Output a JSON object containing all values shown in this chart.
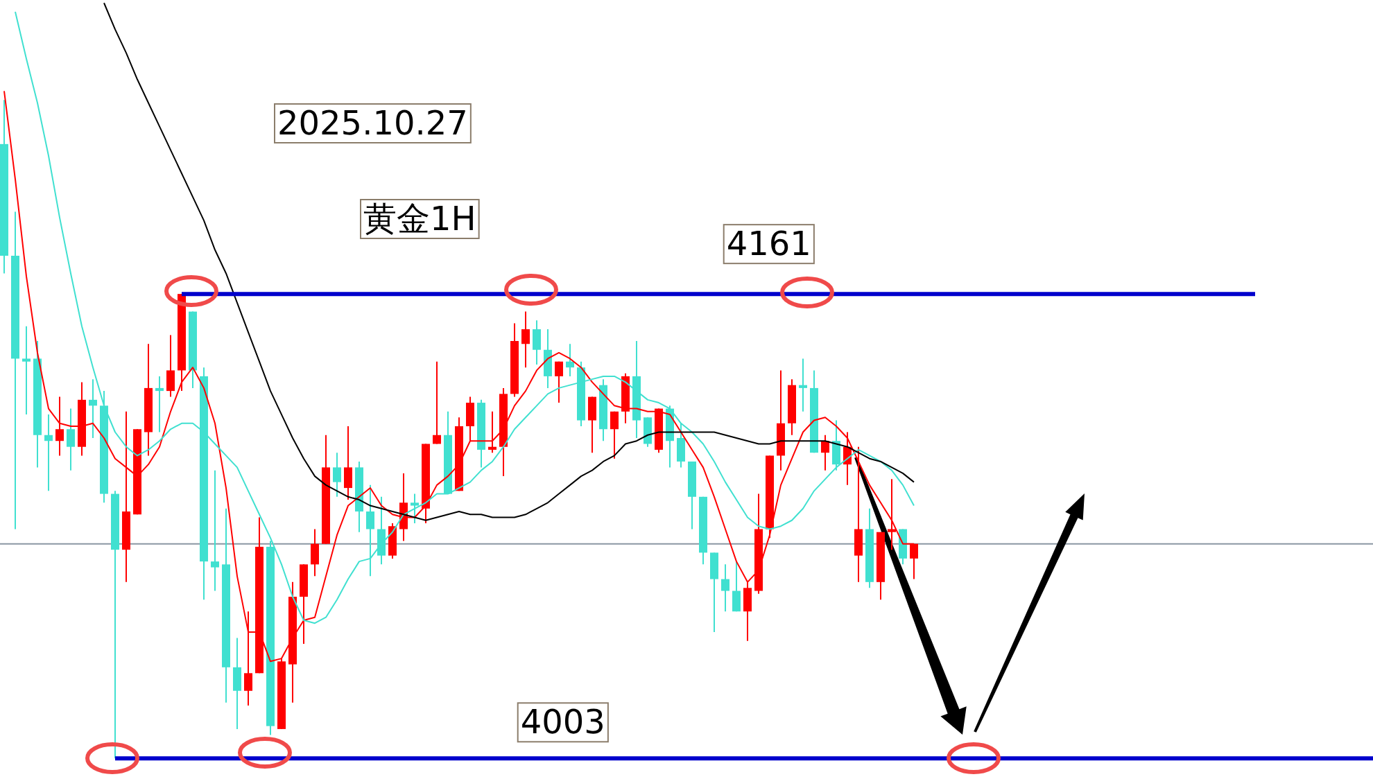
{
  "chart_data": {
    "type": "candlestick",
    "title": "2025.10.27",
    "subtitle": "黄金1H",
    "tick_labels": false,
    "ylim": [
      3996,
      4261
    ],
    "categories": [
      null,
      null,
      null,
      null,
      null,
      null,
      null,
      null,
      null,
      null,
      null,
      null,
      null,
      null,
      null,
      null,
      null,
      null,
      null,
      null,
      null,
      null,
      null,
      null,
      null,
      null,
      null,
      null,
      null,
      null,
      null,
      null,
      null,
      null,
      null,
      null,
      null,
      null,
      null,
      null,
      null,
      null,
      null,
      null,
      null,
      null,
      null,
      null,
      null,
      null,
      null,
      null,
      null,
      null,
      null,
      null,
      null,
      null,
      null,
      null,
      null,
      null,
      null,
      null,
      null,
      null,
      null,
      null,
      null,
      null,
      null,
      null,
      null,
      null,
      null,
      null,
      null,
      null,
      null,
      null,
      null,
      null,
      null
    ],
    "ohlc": [
      [
        4212,
        4227,
        4168,
        4174
      ],
      [
        4174,
        4189,
        4081,
        4139
      ],
      [
        4139,
        4150,
        4120,
        4138
      ],
      [
        4139,
        4145,
        4102,
        4113
      ],
      [
        4113,
        4120,
        4094,
        4111
      ],
      [
        4111,
        4126,
        4106,
        4115
      ],
      [
        4115,
        4122,
        4101,
        4109
      ],
      [
        4109,
        4131,
        4106,
        4125
      ],
      [
        4125,
        4132,
        4112,
        4123
      ],
      [
        4123,
        4128,
        4090,
        4093
      ],
      [
        4093,
        4094,
        4003,
        4074
      ],
      [
        4074,
        4121,
        4063,
        4087
      ],
      [
        4086,
        4115,
        4086,
        4115
      ],
      [
        4114,
        4144,
        4106,
        4129
      ],
      [
        4129,
        4133,
        4114,
        4128
      ],
      [
        4128,
        4147,
        4126,
        4135
      ],
      [
        4135,
        4161,
        4128,
        4161
      ],
      [
        4155,
        4155,
        4129,
        4135
      ],
      [
        4133,
        4136,
        4057,
        4070
      ],
      [
        4070,
        4101,
        4060,
        4068
      ],
      [
        4069,
        4088,
        4022,
        4034
      ],
      [
        4034,
        4044,
        4013,
        4026
      ],
      [
        4026,
        4053,
        4021,
        4032
      ],
      [
        4032,
        4085,
        4032,
        4075
      ],
      [
        4075,
        4077,
        4011,
        4014
      ],
      [
        4013,
        4037,
        4013,
        4036
      ],
      [
        4035,
        4063,
        4022,
        4058
      ],
      [
        4058,
        4069,
        4042,
        4069
      ],
      [
        4069,
        4081,
        4065,
        4076
      ],
      [
        4076,
        4113,
        4076,
        4102
      ],
      [
        4102,
        4107,
        4092,
        4097
      ],
      [
        4095,
        4116,
        4091,
        4102
      ],
      [
        4102,
        4104,
        4080,
        4087
      ],
      [
        4087,
        4096,
        4065,
        4081
      ],
      [
        4081,
        4092,
        4069,
        4072
      ],
      [
        4072,
        4083,
        4071,
        4082
      ],
      [
        4081,
        4100,
        4077,
        4090
      ],
      [
        4090,
        4093,
        4083,
        4089
      ],
      [
        4088,
        4110,
        4083,
        4110
      ],
      [
        4110,
        4138,
        4110,
        4113
      ],
      [
        4113,
        4121,
        4093,
        4093
      ],
      [
        4094,
        4119,
        4094,
        4116
      ],
      [
        4116,
        4126,
        4111,
        4124
      ],
      [
        4124,
        4125,
        4102,
        4108
      ],
      [
        4108,
        4121,
        4107,
        4109
      ],
      [
        4109,
        4129,
        4099,
        4127
      ],
      [
        4127,
        4151,
        4126,
        4145
      ],
      [
        4144,
        4155,
        4136,
        4149
      ],
      [
        4149,
        4152,
        4137,
        4142
      ],
      [
        4142,
        4149,
        4129,
        4133
      ],
      [
        4133,
        4138,
        4124,
        4138
      ],
      [
        4138,
        4144,
        4133,
        4136
      ],
      [
        4136,
        4138,
        4116,
        4118
      ],
      [
        4118,
        4126,
        4107,
        4126
      ],
      [
        4130,
        4132,
        4111,
        4115
      ],
      [
        4115,
        4121,
        4105,
        4121
      ],
      [
        4121,
        4134,
        4117,
        4133
      ],
      [
        4133,
        4145,
        4112,
        4118
      ],
      [
        4119,
        4119,
        4109,
        4110
      ],
      [
        4108,
        4122,
        4107,
        4122
      ],
      [
        4122,
        4123,
        4102,
        4111
      ],
      [
        4112,
        4117,
        4102,
        4104
      ],
      [
        4104,
        4104,
        4081,
        4092
      ],
      [
        4092,
        4092,
        4069,
        4073
      ],
      [
        4073,
        4073,
        4046,
        4064
      ],
      [
        4064,
        4069,
        4053,
        4060
      ],
      [
        4060,
        4070,
        4053,
        4053
      ],
      [
        4053,
        4063,
        4043,
        4061
      ],
      [
        4060,
        4093,
        4059,
        4081
      ],
      [
        4081,
        4106,
        4078,
        4106
      ],
      [
        4106,
        4135,
        4101,
        4117
      ],
      [
        4117,
        4132,
        4113,
        4130
      ],
      [
        4130,
        4139,
        4121,
        4129
      ],
      [
        4129,
        4135,
        4107,
        4107
      ],
      [
        4107,
        4113,
        4101,
        4111
      ],
      [
        4111,
        4118,
        4101,
        4103
      ],
      [
        4103,
        4114,
        4096,
        4109
      ],
      [
        4072,
        4109,
        4063,
        4081
      ],
      [
        4081,
        4088,
        4061,
        4063
      ],
      [
        4063,
        4080,
        4057,
        4080
      ],
      [
        4080,
        4098,
        4074,
        4081
      ],
      [
        4081,
        4081,
        4069,
        4071
      ],
      [
        4071,
        4076,
        4064,
        4076
      ]
    ],
    "colors": [
      "#40e0d0",
      "#40e0d0",
      "#40e0d0",
      "#40e0d0",
      "#40e0d0",
      "#ff0000",
      "#40e0d0",
      "#ff0000",
      "#40e0d0",
      "#40e0d0",
      "#40e0d0",
      "#ff0000",
      "#ff0000",
      "#ff0000",
      "#40e0d0",
      "#ff0000",
      "#ff0000",
      "#40e0d0",
      "#40e0d0",
      "#40e0d0",
      "#40e0d0",
      "#40e0d0",
      "#ff0000",
      "#ff0000",
      "#40e0d0",
      "#ff0000",
      "#ff0000",
      "#ff0000",
      "#ff0000",
      "#ff0000",
      "#40e0d0",
      "#ff0000",
      "#40e0d0",
      "#40e0d0",
      "#40e0d0",
      "#ff0000",
      "#ff0000",
      "#40e0d0",
      "#ff0000",
      "#ff0000",
      "#40e0d0",
      "#ff0000",
      "#ff0000",
      "#40e0d0",
      "#ff0000",
      "#ff0000",
      "#ff0000",
      "#ff0000",
      "#40e0d0",
      "#40e0d0",
      "#ff0000",
      "#40e0d0",
      "#40e0d0",
      "#ff0000",
      "#40e0d0",
      "#ff0000",
      "#ff0000",
      "#40e0d0",
      "#40e0d0",
      "#ff0000",
      "#40e0d0",
      "#40e0d0",
      "#40e0d0",
      "#40e0d0",
      "#40e0d0",
      "#40e0d0",
      "#40e0d0",
      "#ff0000",
      "#ff0000",
      "#ff0000",
      "#ff0000",
      "#ff0000",
      "#40e0d0",
      "#40e0d0",
      "#ff0000",
      "#40e0d0",
      "#ff0000",
      "#ff0000",
      "#40e0d0",
      "#ff0000",
      "#ff0000",
      "#40e0d0",
      "#ff0000"
    ],
    "series": [
      {
        "type": "line",
        "color": "#ff0000",
        "values": [
          4230,
          4200,
          4167,
          4141,
          4122,
          4117,
          4116,
          4116,
          4117,
          4112,
          4105,
          4102,
          4099,
          4103,
          4109,
          4121,
          4131,
          4136,
          4129,
          4117,
          4095,
          4065,
          4046,
          4046,
          4036,
          4037,
          4044,
          4050,
          4051,
          4065,
          4079,
          4089,
          4092,
          4095,
          4089,
          4086,
          4085,
          4085,
          4089,
          4096,
          4099,
          4103,
          4111,
          4111,
          4111,
          4115,
          4123,
          4128,
          4135,
          4139,
          4141,
          4139,
          4136,
          4131,
          4127,
          4123,
          4122,
          4122,
          4121,
          4121,
          4120,
          4114,
          4108,
          4102,
          4092,
          4081,
          4070,
          4063,
          4067,
          4079,
          4096,
          4105,
          4114,
          4118,
          4119,
          4116,
          4112,
          4104,
          4096,
          4090,
          4084,
          4076,
          4076
        ]
      },
      {
        "type": "line",
        "color": "#40e0d0",
        "values": [
          null,
          4257,
          4241,
          4226,
          4208,
          4187,
          4168,
          4150,
          4136,
          4123,
          4114,
          4109,
          4106,
          4108,
          4111,
          4115,
          4117,
          4117,
          4114,
          4110,
          4106,
          4102,
          4094,
          4086,
          4078,
          4069,
          4058,
          4050,
          4049,
          4051,
          4057,
          4064,
          4070,
          4071,
          4076,
          4080,
          4086,
          4088,
          4090,
          4093,
          4093,
          4095,
          4097,
          4101,
          4104,
          4109,
          4115,
          4119,
          4123,
          4127,
          4129,
          4130,
          4131,
          4132,
          4133,
          4133,
          4131,
          4128,
          4125,
          4124,
          4122,
          4117,
          4114,
          4110,
          4104,
          4097,
          4091,
          4085,
          4082,
          4081,
          4082,
          4084,
          4088,
          4094,
          4098,
          4102,
          4105,
          4108,
          4106,
          4104,
          4101,
          4096,
          4089
        ]
      },
      {
        "type": "line",
        "color": "#000000",
        "values": [
          null,
          null,
          null,
          null,
          null,
          null,
          null,
          null,
          null,
          4260,
          4251,
          4243,
          4234,
          4226,
          4218,
          4210,
          4202,
          4194,
          4186,
          4176,
          4168,
          4158,
          4148,
          4138,
          4128,
          4120,
          4112,
          4105,
          4099,
          4096,
          4094,
          4092,
          4091,
          4089,
          4088,
          4087,
          4086,
          4085,
          4084,
          4085,
          4086,
          4087,
          4086,
          4086,
          4085,
          4085,
          4085,
          4086,
          4088,
          4090,
          4093,
          4096,
          4099,
          4101,
          4104,
          4106,
          4110,
          4111,
          4113,
          4114,
          4114,
          4114,
          4114,
          4114,
          4114,
          4113,
          4112,
          4111,
          4110,
          4110,
          4111,
          4111,
          4111,
          4111,
          4111,
          4110,
          4109,
          4107,
          4105,
          4104,
          4102,
          4100,
          4097
        ]
      }
    ],
    "ref_lines": [
      {
        "axis": "y",
        "value": 4161,
        "label": "4161",
        "color": "#0000cc"
      },
      {
        "axis": "y",
        "value": 4003,
        "label": "4003",
        "color": "#0000cc"
      },
      {
        "axis": "y",
        "value": 4076,
        "label": null,
        "color": "#8a96a3"
      }
    ]
  }
}
